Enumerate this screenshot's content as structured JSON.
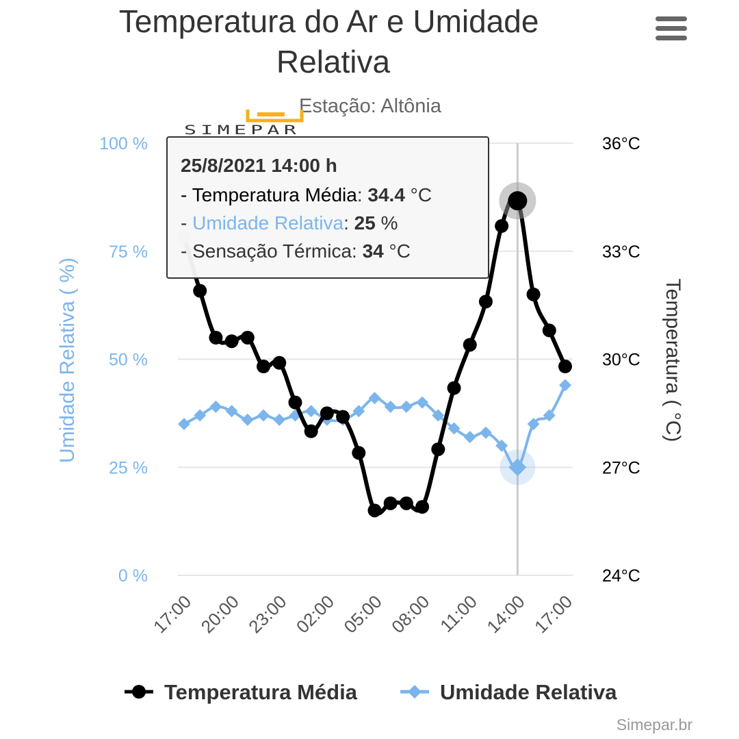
{
  "menu_icon": "hamburger-menu-icon",
  "logo": {
    "text": "SIMEPAR",
    "accent_color": "#f5b21a"
  },
  "credit": "Simepar.br",
  "colors": {
    "temperature": "#000000",
    "humidity": "#7cb5ec",
    "grid": "#e6e6e6"
  },
  "chart_data": {
    "type": "line",
    "title": "Temperatura do Ar e Umidade Relativa",
    "subtitle": "Estação: Altônia",
    "x_tick_labels": [
      "17:00",
      "20:00",
      "23:00",
      "02:00",
      "05:00",
      "08:00",
      "11:00",
      "14:00",
      "17:00"
    ],
    "x_tick_interval_hours": 3,
    "y_left": {
      "title": "Umidade Relativa ( %)",
      "range": [
        0,
        100
      ],
      "ticks": [
        "0 %",
        "25 %",
        "50 %",
        "75 %",
        "100 %"
      ]
    },
    "y_right": {
      "title": "Temperatura ( °C)",
      "range": [
        24,
        36
      ],
      "ticks": [
        "24°C",
        "27°C",
        "30°C",
        "33°C",
        "36°C"
      ]
    },
    "grid": true,
    "legend_position": "bottom",
    "series": [
      {
        "name": "Temperatura Média",
        "axis": "right",
        "marker": "circle",
        "values": [
          33.4,
          31.9,
          30.6,
          30.5,
          30.6,
          29.8,
          29.9,
          28.8,
          28.0,
          28.5,
          28.4,
          27.4,
          25.8,
          26.0,
          26.0,
          25.9,
          27.5,
          29.2,
          30.4,
          31.6,
          33.7,
          34.4,
          31.8,
          30.8,
          29.8
        ]
      },
      {
        "name": "Umidade Relativa",
        "axis": "left",
        "marker": "diamond",
        "values": [
          35,
          37,
          39,
          38,
          36,
          37,
          36,
          37,
          38,
          36,
          36,
          38,
          41,
          39,
          39,
          40,
          37,
          34,
          32,
          33,
          30,
          25,
          35,
          37,
          44
        ]
      }
    ],
    "tooltip": {
      "date": "25/8/2021 14:00 h",
      "temp_label": "- Temperatura Média",
      "temp_value": "34.4",
      "temp_unit": " °C",
      "hum_prefix": "- ",
      "hum_label": "Umidade Relativa",
      "hum_value": "25",
      "hum_unit": " %",
      "feel_label": "- Sensação Térmica",
      "feel_value": "34",
      "feel_unit": " °C",
      "hovered_index": 21
    }
  }
}
